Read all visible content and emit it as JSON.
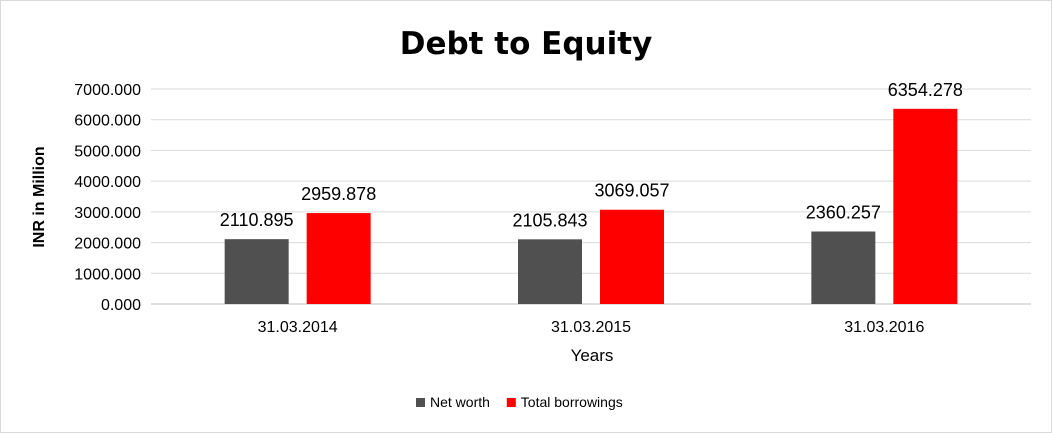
{
  "chart_data": {
    "type": "bar",
    "title": "Debt to Equity",
    "xlabel": "Years",
    "ylabel": "INR in Million",
    "categories": [
      "31.03.2014",
      "31.03.2015",
      "31.03.2016"
    ],
    "series": [
      {
        "name": "Net worth",
        "color": "#505050",
        "values": [
          2110.895,
          2105.843,
          2360.257
        ],
        "labels": [
          "2110.895",
          "2105.843",
          "2360.257"
        ]
      },
      {
        "name": "Total borrowings",
        "color": "#ff0000",
        "values": [
          2959.878,
          3069.057,
          6354.278
        ],
        "labels": [
          "2959.878",
          "3069.057",
          "6354.278"
        ]
      }
    ],
    "ylim": [
      0,
      7000
    ],
    "yticks": [
      0,
      1000,
      2000,
      3000,
      4000,
      5000,
      6000,
      7000
    ],
    "ytick_labels": [
      "0.000",
      "1000.000",
      "2000.000",
      "3000.000",
      "4000.000",
      "5000.000",
      "6000.000",
      "7000.000"
    ],
    "grid": true,
    "legend_position": "bottom"
  }
}
